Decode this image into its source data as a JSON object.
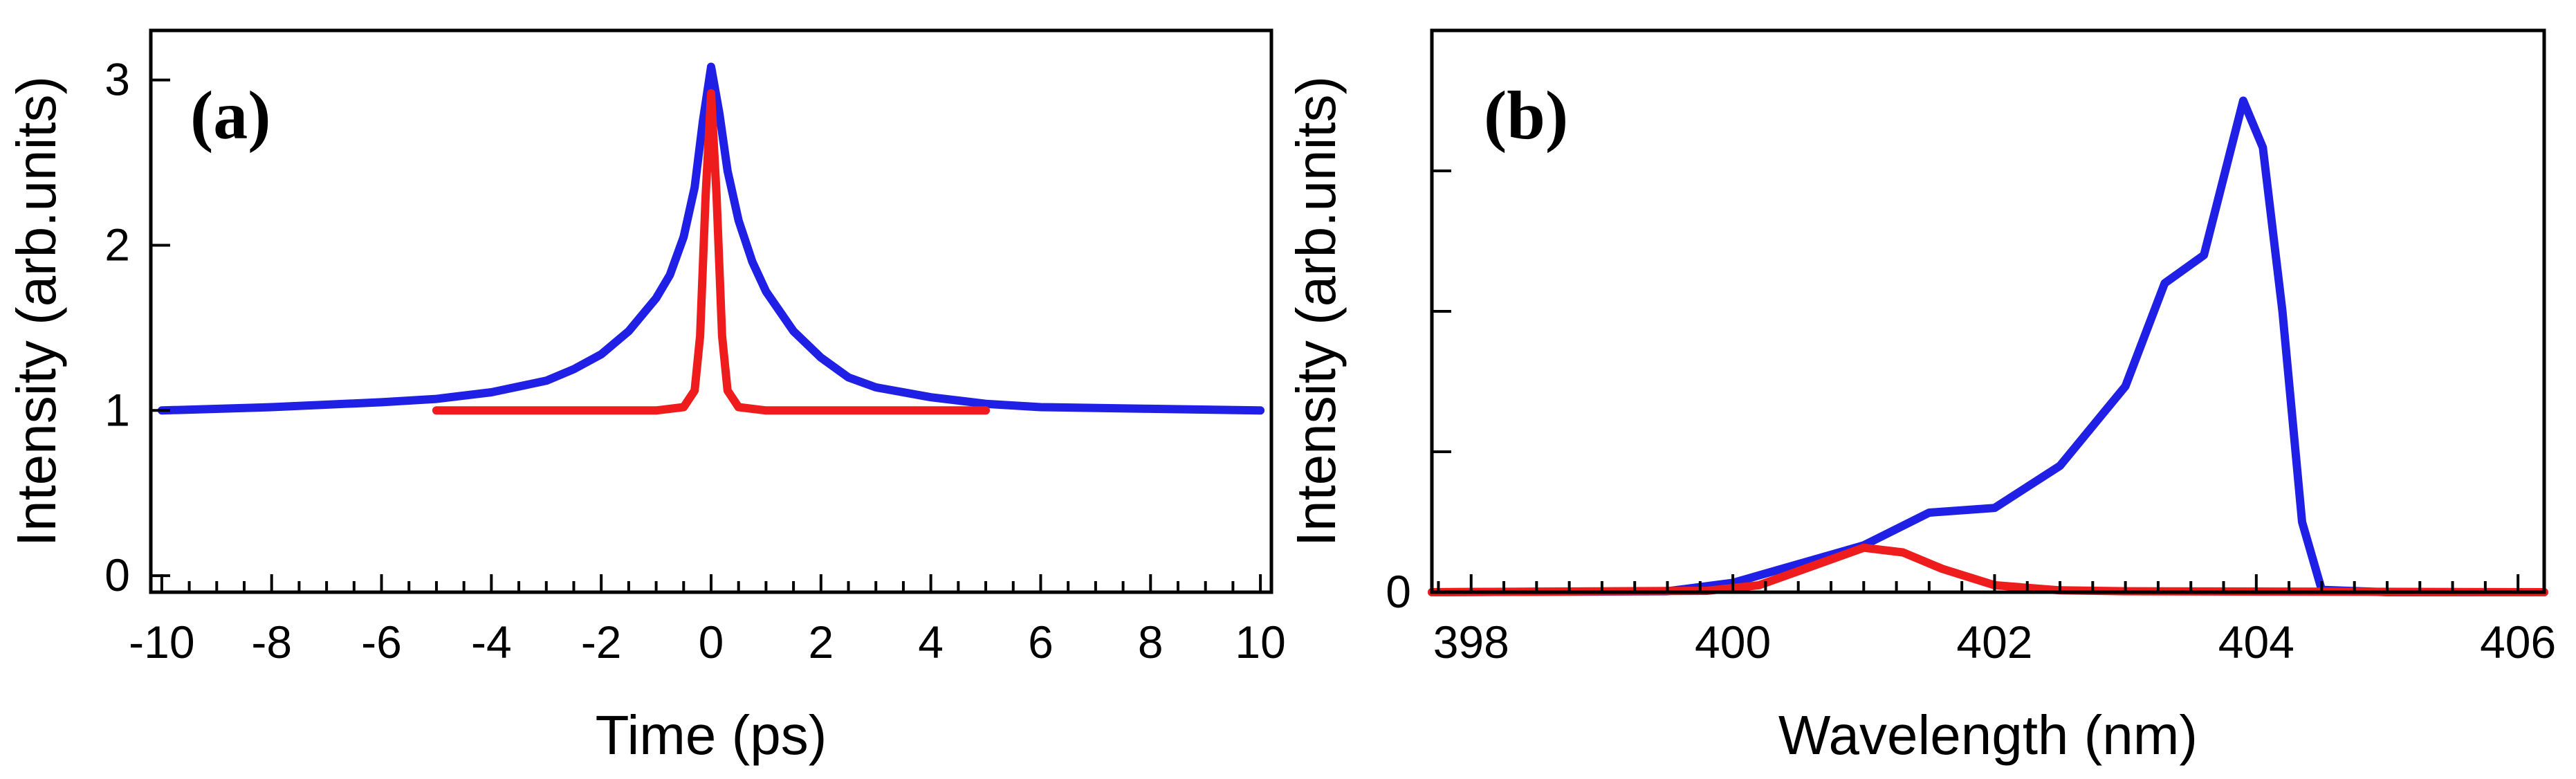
{
  "chart_data": [
    {
      "type": "line",
      "panel_label": "(a)",
      "xlabel": "Time (ps)",
      "ylabel": "Intensity (arb.units)",
      "xlim": [
        -10.2,
        10.2
      ],
      "ylim": [
        -0.1,
        3.3
      ],
      "xticks": [
        -10,
        -8,
        -6,
        -4,
        -2,
        0,
        2,
        4,
        6,
        8,
        10
      ],
      "xtick_labels": [
        "-10",
        "-8",
        "-6",
        "-4",
        "-2",
        "0",
        "2",
        "4",
        "6",
        "8",
        "10"
      ],
      "yticks": [
        0,
        1,
        2,
        3
      ],
      "ytick_labels": [
        "0",
        "1",
        "2",
        "3"
      ],
      "series": [
        {
          "name": "blue trace",
          "color": "#1f1fe6",
          "x": [
            -10,
            -8,
            -6,
            -5,
            -4,
            -3,
            -2.5,
            -2,
            -1.5,
            -1,
            -0.75,
            -0.5,
            -0.3,
            -0.15,
            0,
            0.15,
            0.3,
            0.5,
            0.75,
            1,
            1.5,
            2,
            2.5,
            3,
            4,
            5,
            6,
            8,
            10
          ],
          "values": [
            1.0,
            1.02,
            1.05,
            1.07,
            1.11,
            1.18,
            1.25,
            1.34,
            1.48,
            1.68,
            1.82,
            2.05,
            2.35,
            2.75,
            3.08,
            2.8,
            2.45,
            2.15,
            1.9,
            1.72,
            1.48,
            1.32,
            1.2,
            1.14,
            1.08,
            1.04,
            1.02,
            1.01,
            1.0
          ]
        },
        {
          "name": "red trace",
          "color": "#ee1c1c",
          "x": [
            -5,
            -4,
            -3,
            -2,
            -1,
            -0.5,
            -0.3,
            -0.2,
            -0.1,
            0,
            0.1,
            0.2,
            0.3,
            0.5,
            1,
            2,
            3,
            4,
            5
          ],
          "values": [
            1.0,
            1.0,
            1.0,
            1.0,
            1.0,
            1.02,
            1.12,
            1.45,
            2.3,
            2.92,
            2.3,
            1.45,
            1.12,
            1.02,
            1.0,
            1.0,
            1.0,
            1.0,
            1.0
          ]
        }
      ]
    },
    {
      "type": "line",
      "panel_label": "(b)",
      "xlabel": "Wavelength (nm)",
      "ylabel": "Intensity (arb.units)",
      "xlim": [
        397.7,
        406.2
      ],
      "ylim": [
        0,
        1.2
      ],
      "xticks": [
        398,
        400,
        402,
        404,
        406
      ],
      "xtick_labels": [
        "398",
        "400",
        "402",
        "404",
        "406"
      ],
      "yticks": [
        0,
        0.3,
        0.6,
        0.9
      ],
      "ytick_labels": [
        "0",
        "",
        "",
        ""
      ],
      "series": [
        {
          "name": "blue trace",
          "color": "#1f1fe6",
          "x": [
            397.7,
            399.5,
            400.0,
            400.5,
            401.0,
            401.5,
            402.0,
            402.5,
            403.0,
            403.3,
            403.6,
            403.9,
            404.05,
            404.2,
            404.35,
            404.5,
            405.0,
            406.2
          ],
          "values": [
            0,
            0.002,
            0.02,
            0.06,
            0.1,
            0.17,
            0.18,
            0.27,
            0.44,
            0.66,
            0.72,
            1.05,
            0.95,
            0.6,
            0.15,
            0.005,
            0,
            0
          ]
        },
        {
          "name": "red trace",
          "color": "#ee1c1c",
          "x": [
            397.7,
            399.8,
            400.2,
            400.6,
            401.0,
            401.3,
            401.6,
            402.0,
            402.5,
            403.0,
            406.2
          ],
          "values": [
            0,
            0.003,
            0.015,
            0.055,
            0.095,
            0.085,
            0.05,
            0.015,
            0.004,
            0.002,
            0
          ]
        }
      ]
    }
  ]
}
